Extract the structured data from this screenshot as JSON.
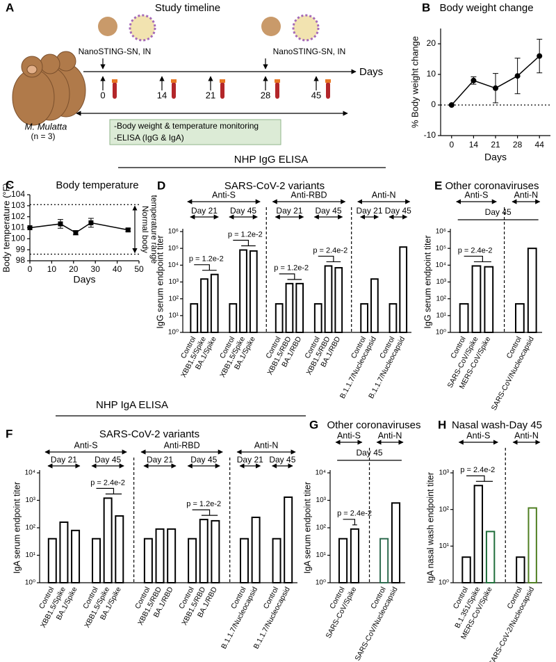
{
  "headings": [
    "NHP IgG ELISA",
    "NHP IgA ELISA"
  ],
  "timeline": {
    "panel": "A",
    "title": "Study timeline",
    "doses": [
      "NanoSTING-SN, IN",
      "NanoSTING-SN, IN"
    ],
    "axis_label": "Days",
    "days": [
      0,
      14,
      21,
      28,
      45
    ],
    "monitoring": [
      "-Body weight & temperature monitoring",
      "-ELISA (IgG & IgA)"
    ],
    "species": "M. Mulatta",
    "n": "(n = 3)"
  },
  "chart_data": [
    {
      "type": "line",
      "panel": "B",
      "title": "Body weight change",
      "ylabel": "% Body weight change",
      "xlabel": "Days",
      "marker": "circle",
      "color": "#000000",
      "categories": [
        "0",
        "14",
        "21",
        "28",
        "44"
      ],
      "values": [
        0,
        8,
        5.5,
        9.5,
        16
      ],
      "errors": [
        0,
        1.2,
        4.8,
        5.8,
        5.5
      ],
      "ylim": [
        -10,
        25
      ],
      "yticks": [
        -10,
        0,
        10,
        20
      ],
      "reference_lines": [
        0
      ]
    },
    {
      "type": "line",
      "panel": "C",
      "title": "Body temperature",
      "ylabel": "Body temperature (°F)",
      "xlabel": "Days",
      "marker": "square",
      "color": "#000000",
      "x": [
        0,
        14,
        21,
        28,
        45
      ],
      "values": [
        101.0,
        101.35,
        100.55,
        101.45,
        100.8
      ],
      "errors": [
        0,
        0.4,
        0.2,
        0.4,
        0.15
      ],
      "xlim": [
        0,
        50
      ],
      "xticks": [
        0,
        10,
        20,
        30,
        40,
        50
      ],
      "ylim": [
        98,
        104
      ],
      "yticks": [
        98,
        99,
        100,
        101,
        102,
        103,
        104
      ],
      "reference_lines": [
        103.1,
        98.6
      ],
      "range_label": [
        "Normal body",
        "temperature range"
      ]
    },
    {
      "type": "bar",
      "panel": "D",
      "title": "SARS-CoV-2 variants",
      "ylabel": "IgG serum endpoint  titer",
      "color": "#000000",
      "ylim": [
        1,
        1000000
      ],
      "yticks": [
        {
          "value": 1,
          "label": "10⁰"
        },
        {
          "value": 10,
          "label": "10¹"
        },
        {
          "value": 100,
          "label": "10²"
        },
        {
          "value": 1000,
          "label": "10³"
        },
        {
          "value": 10000,
          "label": "10⁴"
        },
        {
          "value": 100000,
          "label": "10⁵"
        },
        {
          "value": 1000000,
          "label": "10⁶"
        }
      ],
      "groups": [
        {
          "label": "Anti-S",
          "subgroups": [
            {
              "label": "Day 21",
              "categories": [
                "Control",
                "XBB1.5/Spike",
                "BA.1/Spike"
              ],
              "values": [
                50,
                1500,
                2800
              ],
              "p_value": "p = 1.2e-2"
            },
            {
              "label": "Day 45",
              "categories": [
                "Control",
                "XBB1.5/Spike",
                "BA.1/Spike"
              ],
              "values": [
                50,
                80000,
                70000
              ],
              "p_value": "p = 1.2e-2"
            }
          ]
        },
        {
          "label": "Anti-RBD",
          "subgroups": [
            {
              "label": "Day 21",
              "categories": [
                "Control",
                "XBB1.5/RBD",
                "BA.1/RBD"
              ],
              "values": [
                50,
                800,
                800
              ],
              "p_value": "p = 1.2e-2"
            },
            {
              "label": "Day 45",
              "categories": [
                "Control",
                "XBB1.5/RBD",
                "BA.1/RBD"
              ],
              "values": [
                50,
                9000,
                7000
              ],
              "p_value": "p = 2.4e-2"
            }
          ]
        },
        {
          "label": "Anti-N",
          "subgroups": [
            {
              "label": "Day 21",
              "categories": [
                "Control",
                "B.1.1.7/Nucleocapsid"
              ],
              "values": [
                50,
                1500
              ]
            },
            {
              "label": "Day 45",
              "categories": [
                "Control",
                "B.1.1.7/Nucleocapsid"
              ],
              "values": [
                50,
                120000
              ]
            }
          ]
        }
      ]
    },
    {
      "type": "bar",
      "panel": "E",
      "title": "Other coronaviruses",
      "ylabel": "IgG serum endpoint  titer",
      "color": "#000000",
      "span_label": "Day 45",
      "ylim": [
        1,
        1000000
      ],
      "yticks": [
        {
          "value": 1,
          "label": "10⁰"
        },
        {
          "value": 10,
          "label": "10¹"
        },
        {
          "value": 100,
          "label": "10²"
        },
        {
          "value": 1000,
          "label": "10³"
        },
        {
          "value": 10000,
          "label": "10⁴"
        },
        {
          "value": 100000,
          "label": "10⁵"
        },
        {
          "value": 1000000,
          "label": "10⁶"
        }
      ],
      "groups": [
        {
          "label": "Anti-S",
          "subgroups": [
            {
              "categories": [
                "Control",
                "SARS-CoV/Spike",
                "MERS-CoV/Spike"
              ],
              "values": [
                50,
                9000,
                8000
              ],
              "p_value": "p = 2.4e-2"
            }
          ]
        },
        {
          "label": "Anti-N",
          "subgroups": [
            {
              "categories": [
                "Control",
                "SARS-CoV/Nucleocapsid"
              ],
              "values": [
                50,
                100000
              ]
            }
          ]
        }
      ]
    },
    {
      "type": "bar",
      "panel": "F",
      "title": "SARS-CoV-2 variants",
      "ylabel": "IgA serum endpoint  titer",
      "color": "#000000",
      "ylim": [
        1,
        10000
      ],
      "yticks": [
        {
          "value": 1,
          "label": "10⁰"
        },
        {
          "value": 10,
          "label": "10¹"
        },
        {
          "value": 100,
          "label": "10²"
        },
        {
          "value": 1000,
          "label": "10³"
        },
        {
          "value": 10000,
          "label": "10⁴"
        }
      ],
      "groups": [
        {
          "label": "Anti-S",
          "subgroups": [
            {
              "label": "Day 21",
              "categories": [
                "Control",
                "XBB1.5/Spike",
                "BA.1/Spike"
              ],
              "values": [
                40,
                160,
                80
              ]
            },
            {
              "label": "Day 45",
              "categories": [
                "Control",
                "XBB1.5/Spike",
                "BA.1/Spike"
              ],
              "values": [
                40,
                1200,
                270
              ],
              "p_value": "p = 2.4e-2"
            }
          ]
        },
        {
          "label": "Anti-RBD",
          "subgroups": [
            {
              "label": "Day 21",
              "categories": [
                "Control",
                "XBB1.5/RBD",
                "BA.1/RBD"
              ],
              "values": [
                40,
                90,
                90
              ]
            },
            {
              "label": "Day 45",
              "categories": [
                "Control",
                "XBB1.5/RBD",
                "BA.1/RBD"
              ],
              "values": [
                40,
                200,
                180
              ],
              "p_value": "p = 1.2e-2"
            }
          ]
        },
        {
          "label": "Anti-N",
          "subgroups": [
            {
              "label": "Day 21",
              "categories": [
                "Control",
                "B.1.1.7/Nucleocapsid"
              ],
              "values": [
                40,
                240
              ]
            },
            {
              "label": "Day 45",
              "categories": [
                "Control",
                "B.1.1.7/Nucleocapsid"
              ],
              "values": [
                40,
                1300
              ]
            }
          ]
        }
      ]
    },
    {
      "type": "bar",
      "panel": "G",
      "title": "Other coronaviruses",
      "ylabel": "IgA serum endpoint  titer",
      "color": "#000000",
      "span_label": "Day 45",
      "ylim": [
        1,
        10000
      ],
      "yticks": [
        {
          "value": 1,
          "label": "10⁰"
        },
        {
          "value": 10,
          "label": "10¹"
        },
        {
          "value": 100,
          "label": "10²"
        },
        {
          "value": 1000,
          "label": "10³"
        },
        {
          "value": 10000,
          "label": "10⁴"
        }
      ],
      "groups": [
        {
          "label": "Anti-S",
          "subgroups": [
            {
              "categories": [
                "Control",
                "SARS-CoV/Spike"
              ],
              "values": [
                40,
                90
              ],
              "p_value": "p = 2.4e-2"
            }
          ]
        },
        {
          "label": "Anti-N",
          "subgroups": [
            {
              "categories": [
                "Control",
                "SARS-CoV/Nucleocapsid"
              ],
              "values": [
                40,
                800
              ],
              "colors": [
                "#2e6b4f",
                "#000000"
              ]
            }
          ]
        }
      ]
    },
    {
      "type": "bar",
      "panel": "H",
      "title": "Nasal wash-Day 45",
      "ylabel": "IgA nasal wash endpoint  titer",
      "color": "#000000",
      "ylim": [
        1,
        1000
      ],
      "yticks": [
        {
          "value": 1,
          "label": "10⁰"
        },
        {
          "value": 10,
          "label": "10¹"
        },
        {
          "value": 100,
          "label": "10²"
        },
        {
          "value": 1000,
          "label": "10³"
        }
      ],
      "groups": [
        {
          "label": "Anti-S",
          "subgroups": [
            {
              "categories": [
                "Control",
                "B.1.351/Spike",
                "MERS-CoV/Spike"
              ],
              "values": [
                5,
                450,
                25
              ],
              "p_value": "p = 2.4e-2",
              "colors": [
                "#000000",
                "#000000",
                "#1f6e3a"
              ]
            }
          ]
        },
        {
          "label": "Anti-N",
          "subgroups": [
            {
              "categories": [
                "Control",
                "SARS-CoV-2/Nucleocapsid"
              ],
              "values": [
                5,
                110
              ],
              "colors": [
                "#000000",
                "#4f7f22"
              ]
            }
          ]
        }
      ]
    }
  ]
}
